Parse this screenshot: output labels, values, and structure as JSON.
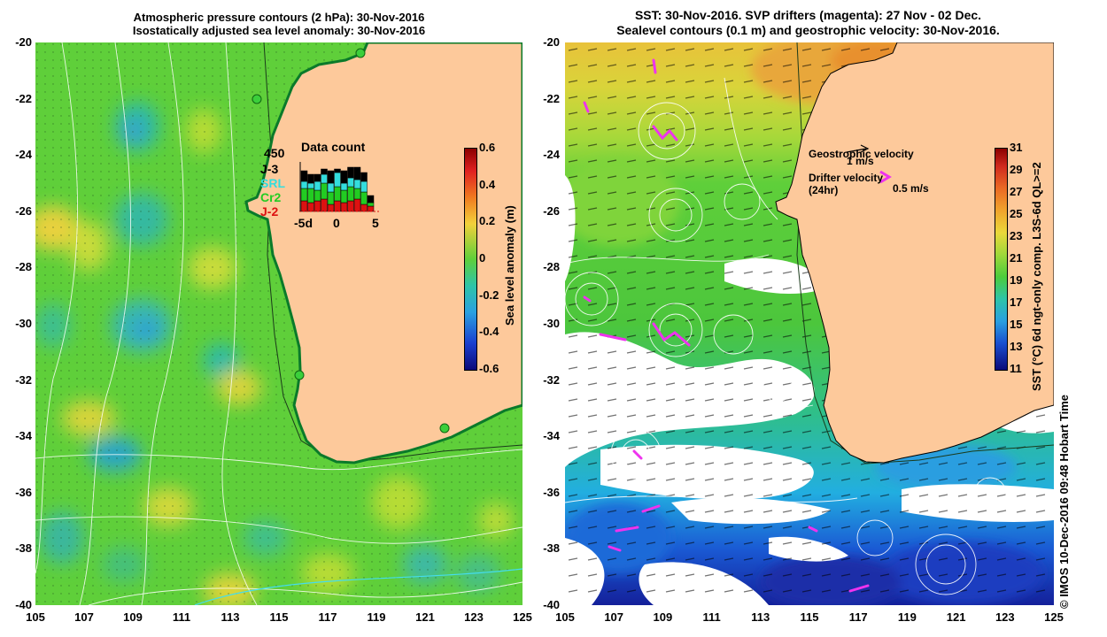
{
  "left_panel": {
    "title_line1": "Atmospheric pressure contours (2 hPa): 30-Nov-2016",
    "title_line2": "Isostatically adjusted sea level anomaly: 30-Nov-2016",
    "colorbar": {
      "label": "Sea level anomaly (m)",
      "ticks": [
        "0.6",
        "0.4",
        "0.2",
        "0",
        "-0.2",
        "-0.4",
        "-0.6"
      ]
    },
    "data_count": {
      "title": "Data count",
      "max_label": "450",
      "legend": [
        {
          "label": "J-3",
          "color": "#000000"
        },
        {
          "label": "SRL",
          "color": "#33dddd"
        },
        {
          "label": "Cr2",
          "color": "#22cc22"
        },
        {
          "label": "J-2",
          "color": "#dd1111"
        }
      ],
      "axis_ticks": [
        "-5d",
        "0",
        "5"
      ]
    }
  },
  "right_panel": {
    "title_line1": "SST: 30-Nov-2016. SVP drifters (magenta): 27 Nov - 02 Dec.",
    "title_line2": "Sealevel contours (0.1 m) and geostrophic velocity: 30-Nov-2016.",
    "geostrophic_label": "Geostrophic velocity",
    "geostrophic_scale": "1 m/s",
    "drifter_label_line1": "Drifter velocity",
    "drifter_label_line2": "(24hr)",
    "drifter_scale": "0.5 m/s",
    "colorbar": {
      "label": "SST (°C) 6d ngt-only comp. L3S-6d QL>=2",
      "ticks": [
        "31",
        "29",
        "27",
        "25",
        "23",
        "21",
        "19",
        "17",
        "15",
        "13",
        "11"
      ]
    }
  },
  "axes": {
    "y_ticks": [
      "-20",
      "-22",
      "-24",
      "-26",
      "-28",
      "-30",
      "-32",
      "-34",
      "-36",
      "-38",
      "-40"
    ],
    "x_ticks": [
      "105",
      "107",
      "109",
      "111",
      "113",
      "115",
      "117",
      "119",
      "121",
      "123",
      "125"
    ]
  },
  "credit": "© IMOS 10-Dec-2016 09:48 Hobart Time",
  "colors": {
    "land": "#fdc99b",
    "coast": "#000000",
    "sla_base": "#5fcf3a",
    "drifter": "#ee33ee"
  }
}
